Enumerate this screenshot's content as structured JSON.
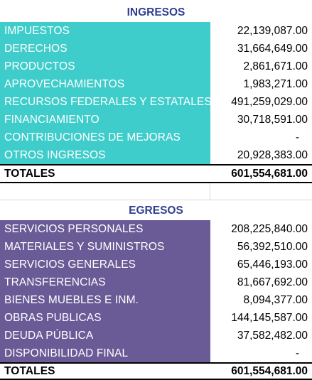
{
  "ingresos": {
    "title": "INGRESOS",
    "items": [
      {
        "label": "IMPUESTOS",
        "value": "22,139,087.00"
      },
      {
        "label": "DERECHOS",
        "value": "31,664,649.00"
      },
      {
        "label": "PRODUCTOS",
        "value": "2,861,671.00"
      },
      {
        "label": "APROVECHAMIENTOS",
        "value": "1,983,271.00"
      },
      {
        "label": "RECURSOS FEDERALES Y ESTATALES",
        "value": "491,259,029.00"
      },
      {
        "label": "FINANCIAMIENTO",
        "value": "30,718,591.00"
      },
      {
        "label": "CONTRIBUCIONES DE MEJORAS",
        "value": "-"
      },
      {
        "label": "OTROS INGRESOS",
        "value": "20,928,383.00"
      }
    ],
    "total_label": "TOTALES",
    "total_value": "601,554,681.00"
  },
  "egresos": {
    "title": "EGRESOS",
    "items": [
      {
        "label": "SERVICIOS PERSONALES",
        "value": "208,225,840.00"
      },
      {
        "label": "MATERIALES Y SUMINISTROS",
        "value": "56,392,510.00"
      },
      {
        "label": "SERVICIOS GENERALES",
        "value": "65,446,193.00"
      },
      {
        "label": "TRANSFERENCIAS",
        "value": "81,667,692.00"
      },
      {
        "label": "BIENES MUEBLES E INM.",
        "value": "8,094,377.00"
      },
      {
        "label": "OBRAS PUBLICAS",
        "value": "144,145,587.00"
      },
      {
        "label": "DEUDA PÚBLICA",
        "value": "37,582,482.00"
      },
      {
        "label": "DISPONIBILIDAD FINAL",
        "value": "-"
      }
    ],
    "total_label": "TOTALES",
    "total_value": "601,554,681.00"
  },
  "colors": {
    "ingresos_fill": "#3fcdcb",
    "egresos_fill": "#6a5b97",
    "title_text": "#2f3f8f"
  }
}
